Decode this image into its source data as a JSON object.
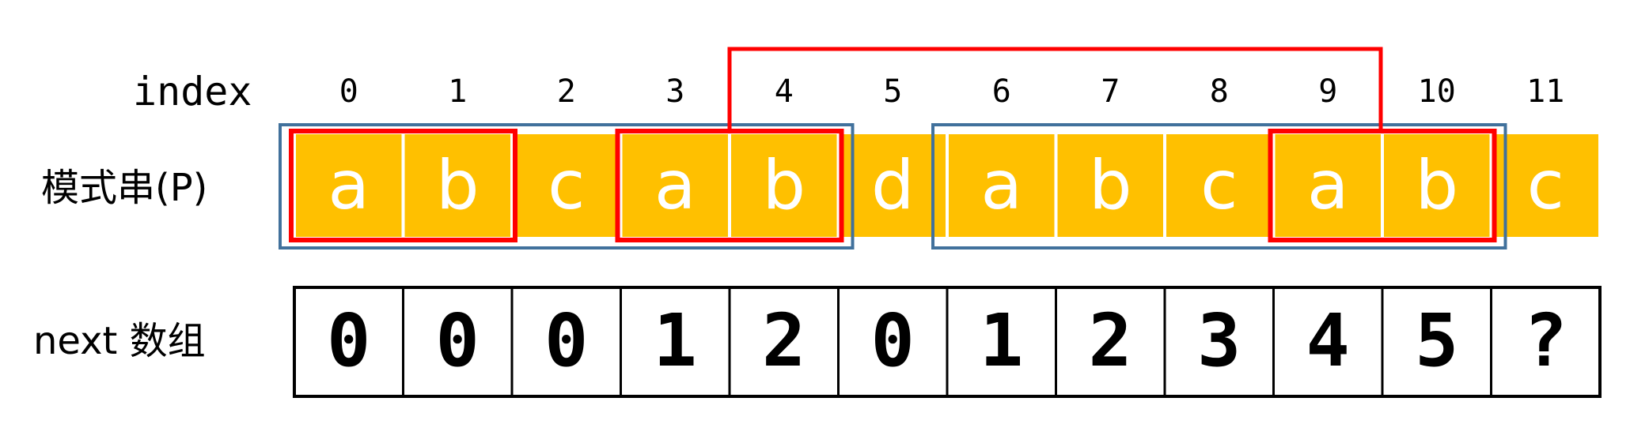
{
  "labels": {
    "index": "index",
    "pattern": "模式串(P)",
    "next": "next 数组"
  },
  "indices": [
    "0",
    "1",
    "2",
    "3",
    "4",
    "5",
    "6",
    "7",
    "8",
    "9",
    "10",
    "11"
  ],
  "pattern_chars": [
    "a",
    "b",
    "c",
    "a",
    "b",
    "d",
    "a",
    "b",
    "c",
    "a",
    "b",
    "c"
  ],
  "next_values": [
    "0",
    "0",
    "0",
    "1",
    "2",
    "0",
    "1",
    "2",
    "3",
    "4",
    "5",
    "?"
  ],
  "colors": {
    "cell_fill": "#FFC000",
    "prefix_highlight": "#FF0000",
    "suffix_box": "#41719C",
    "grid_line": "#000000"
  },
  "highlights": {
    "blue_boxes": [
      {
        "start_index": 0,
        "end_index": 4
      },
      {
        "start_index": 6,
        "end_index": 10
      }
    ],
    "red_boxes": [
      {
        "start_index": 0,
        "end_index": 1
      },
      {
        "start_index": 3,
        "end_index": 4
      },
      {
        "start_index": 9,
        "end_index": 10
      }
    ],
    "red_connector": {
      "from_index": 4,
      "to_index": 9
    }
  }
}
